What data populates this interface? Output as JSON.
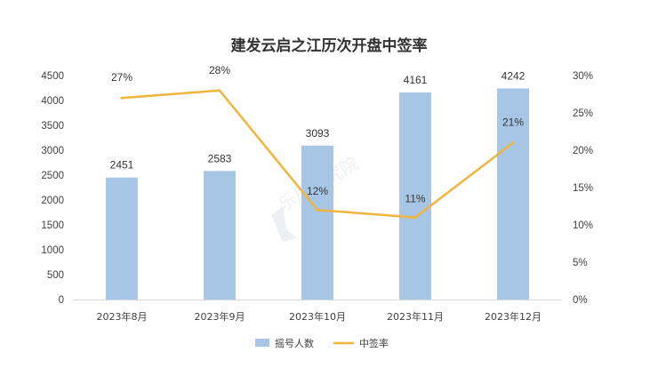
{
  "chart_data": {
    "type": "bar",
    "title": "建发云启之江历次开盘中签率",
    "categories": [
      "2023年8月",
      "2023年9月",
      "2023年10月",
      "2023年11月",
      "2023年12月"
    ],
    "series": [
      {
        "name": "摇号人数",
        "type": "bar",
        "axis": "left",
        "values": [
          2451,
          2583,
          3093,
          4161,
          4242
        ],
        "labels": [
          "2451",
          "2583",
          "3093",
          "4161",
          "4242"
        ],
        "color": "#a7c6e6"
      },
      {
        "name": "中签率",
        "type": "line",
        "axis": "right",
        "values": [
          27,
          28,
          12,
          11,
          21
        ],
        "labels": [
          "27%",
          "28%",
          "12%",
          "11%",
          "21%"
        ],
        "color": "#f0b53c"
      }
    ],
    "y_left": {
      "range": [
        0,
        4500
      ],
      "ticks": [
        "0",
        "500",
        "1000",
        "1500",
        "2000",
        "2500",
        "3000",
        "3500",
        "4000",
        "4500"
      ]
    },
    "y_right": {
      "range": [
        0,
        30
      ],
      "ticks": [
        "0%",
        "5%",
        "10%",
        "15%",
        "20%",
        "25%",
        "30%"
      ]
    },
    "legend": {
      "position": "bottom"
    },
    "grid": false,
    "watermark": "乐居研究院"
  }
}
